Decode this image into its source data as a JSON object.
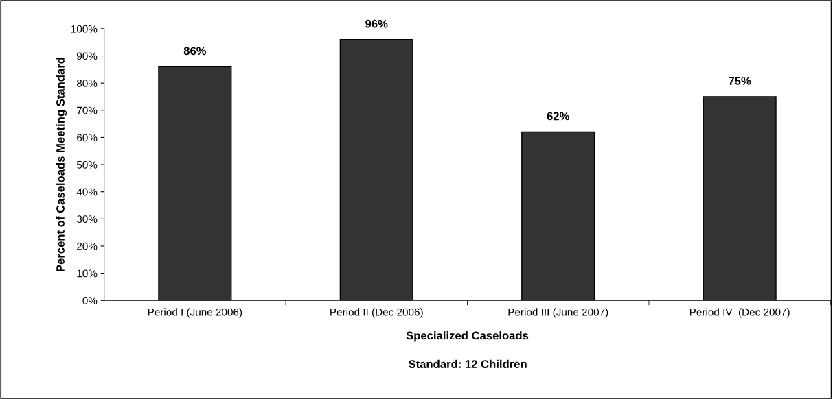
{
  "chart_data": {
    "type": "bar",
    "categories": [
      "Period I (June 2006)",
      "Period II (Dec 2006)",
      "Period III (June 2007)",
      "Period IV  (Dec 2007)"
    ],
    "values": [
      86,
      96,
      62,
      75
    ],
    "value_labels": [
      "86%",
      "96%",
      "62%",
      "75%"
    ],
    "color": "#333333",
    "ylabel": "Percent of Caseloads Meeting Standard",
    "xlabel": "Specialized Caseloads",
    "annotations": [
      "Standard: 12 Children"
    ],
    "ylim": [
      0,
      100
    ],
    "yticks": [
      {
        "value": 0,
        "label": "0%"
      },
      {
        "value": 10,
        "label": "10%"
      },
      {
        "value": 20,
        "label": "20%"
      },
      {
        "value": 30,
        "label": "30%"
      },
      {
        "value": 40,
        "label": "40%"
      },
      {
        "value": 50,
        "label": "50%"
      },
      {
        "value": 60,
        "label": "60%"
      },
      {
        "value": 70,
        "label": "70%"
      },
      {
        "value": 80,
        "label": "80%"
      },
      {
        "value": 90,
        "label": "90%"
      },
      {
        "value": 100,
        "label": "100%"
      }
    ],
    "grid": false,
    "legend": false
  }
}
